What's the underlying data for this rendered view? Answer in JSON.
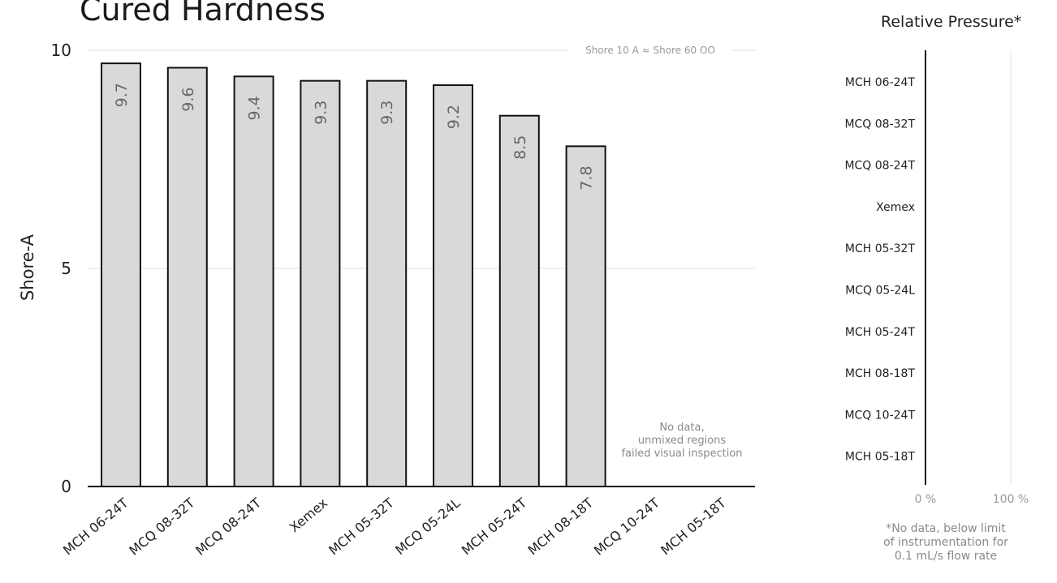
{
  "chart_data": [
    {
      "type": "bar",
      "title": "Cured Hardness",
      "ylabel": "Shore-A",
      "xlabel": "",
      "ylim": [
        0,
        10
      ],
      "yticks": [
        0,
        5,
        10
      ],
      "grid": true,
      "categories": [
        "MCH 06-24T",
        "MCQ 08-32T",
        "MCQ 08-24T",
        "Xemex",
        "MCH 05-32T",
        "MCQ 05-24L",
        "MCH 05-24T",
        "MCH 08-18T",
        "MCQ 10-24T",
        "MCH 05-18T"
      ],
      "values": [
        9.7,
        9.6,
        9.4,
        9.3,
        9.3,
        9.2,
        8.5,
        7.8,
        null,
        null
      ],
      "data_labels": [
        "9.7",
        "9.6",
        "9.4",
        "9.3",
        "9.3",
        "9.2",
        "8.5",
        "7.8",
        "",
        ""
      ],
      "annotations": {
        "reference_line": "Shore 10 A ≈ Shore 60 OO",
        "no_data_note": [
          "No data,",
          "unmixed regions",
          "failed visual inspection"
        ]
      },
      "colors": {
        "bar_fill": "#d9d9d9",
        "bar_stroke": "#111111",
        "grid": "#dddddd",
        "label": "#666666"
      }
    },
    {
      "type": "bar",
      "orientation": "horizontal",
      "title": "Relative Pressure*",
      "categories": [
        "MCH 06-24T",
        "MCQ 08-32T",
        "MCQ 08-24T",
        "Xemex",
        "MCH 05-32T",
        "MCQ 05-24L",
        "MCH 05-24T",
        "MCH 08-18T",
        "MCQ 10-24T",
        "MCH 05-18T"
      ],
      "values": [
        null,
        null,
        null,
        null,
        null,
        null,
        null,
        null,
        null,
        null
      ],
      "xlim": [
        0,
        100
      ],
      "xticks": [
        "0 %",
        "100 %"
      ],
      "footnote": [
        "*No data, below limit",
        "of instrumentation for",
        "0.1 mL/s flow rate"
      ]
    }
  ]
}
